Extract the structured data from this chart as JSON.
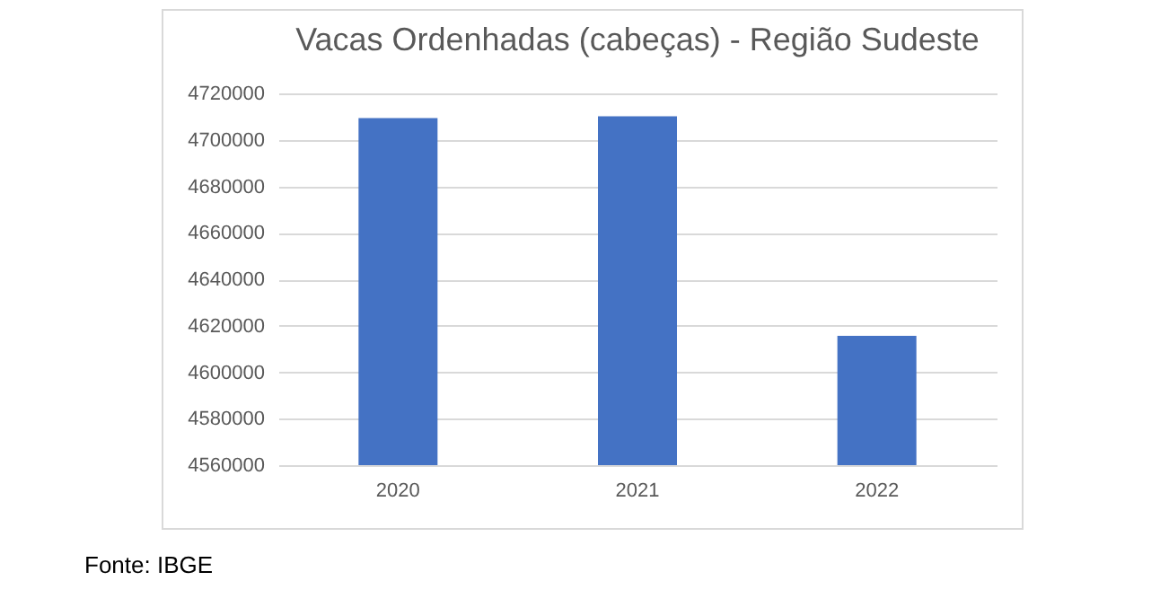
{
  "chart_data": {
    "type": "bar",
    "title": "Vacas Ordenhadas (cabeças) - Região Sudeste",
    "categories": [
      "2020",
      "2021",
      "2022"
    ],
    "values": [
      4709400,
      4710100,
      4615700
    ],
    "color": "#4472c4",
    "ylim": [
      4560000,
      4720000
    ],
    "yticks": [
      4560000,
      4580000,
      4600000,
      4620000,
      4640000,
      4660000,
      4680000,
      4700000,
      4720000
    ],
    "grid": "y",
    "annotations": [
      "Fonte: IBGE"
    ]
  }
}
